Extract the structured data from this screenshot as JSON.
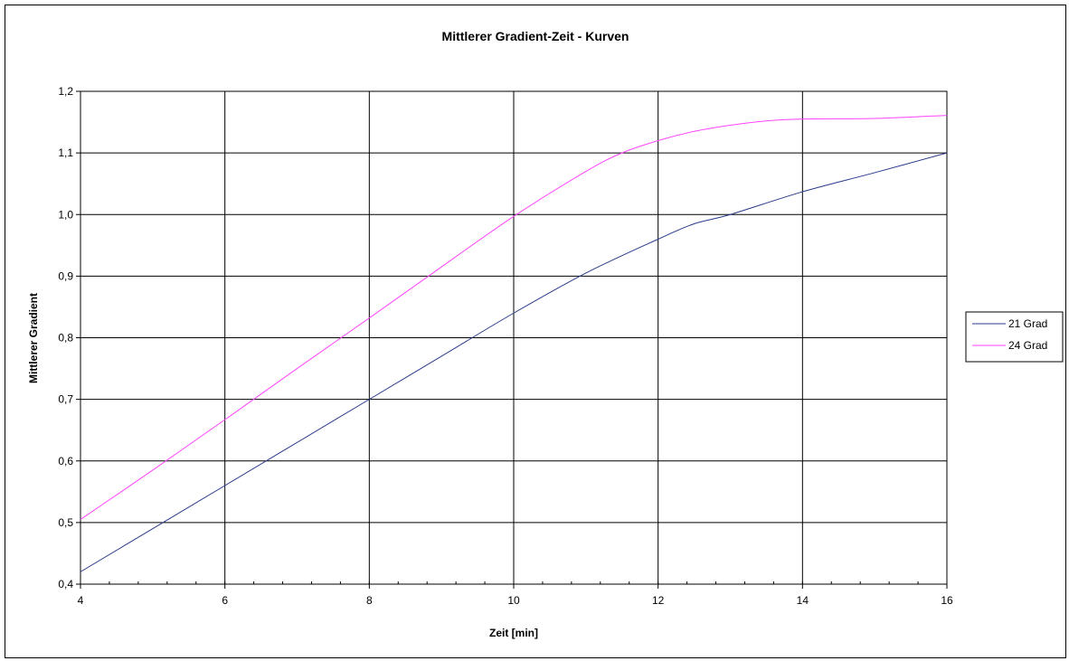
{
  "chart_data": {
    "type": "line",
    "title": "Mittlerer Gradient-Zeit - Kurven",
    "xlabel": "Zeit [min]",
    "ylabel": "Mittlerer Gradient",
    "xlim": [
      4,
      16
    ],
    "ylim": [
      0.4,
      1.2
    ],
    "x_ticks": [
      4,
      6,
      8,
      10,
      12,
      14,
      16
    ],
    "x_tick_labels": [
      "4",
      "6",
      "8",
      "10",
      "12",
      "14",
      "16"
    ],
    "y_ticks": [
      0.4,
      0.5,
      0.6,
      0.7,
      0.8,
      0.9,
      1.0,
      1.1,
      1.2
    ],
    "y_tick_labels": [
      "0,4",
      "0,5",
      "0,6",
      "0,7",
      "0,8",
      "0,9",
      "1,0",
      "1,1",
      "1,2"
    ],
    "grid": true,
    "legend_position": "right",
    "series": [
      {
        "name": "21 Grad",
        "color": "#2b3a8c",
        "points": [
          [
            4,
            0.42
          ],
          [
            5,
            0.49
          ],
          [
            6,
            0.56
          ],
          [
            7,
            0.63
          ],
          [
            8,
            0.7
          ],
          [
            9,
            0.77
          ],
          [
            10,
            0.84
          ],
          [
            11,
            0.905
          ],
          [
            12,
            0.96
          ],
          [
            12.5,
            0.985
          ],
          [
            13,
            1.0
          ],
          [
            14,
            1.037
          ],
          [
            15,
            1.068
          ],
          [
            16,
            1.1
          ]
        ]
      },
      {
        "name": "24 Grad",
        "color": "#ff44ff",
        "points": [
          [
            4,
            0.505
          ],
          [
            5,
            0.585
          ],
          [
            6,
            0.667
          ],
          [
            7,
            0.75
          ],
          [
            8,
            0.832
          ],
          [
            9,
            0.915
          ],
          [
            10,
            0.997
          ],
          [
            11,
            1.07
          ],
          [
            11.5,
            1.1
          ],
          [
            12,
            1.12
          ],
          [
            12.5,
            1.135
          ],
          [
            13,
            1.145
          ],
          [
            13.5,
            1.152
          ],
          [
            14,
            1.155
          ],
          [
            15,
            1.156
          ],
          [
            16,
            1.161
          ]
        ]
      }
    ]
  }
}
